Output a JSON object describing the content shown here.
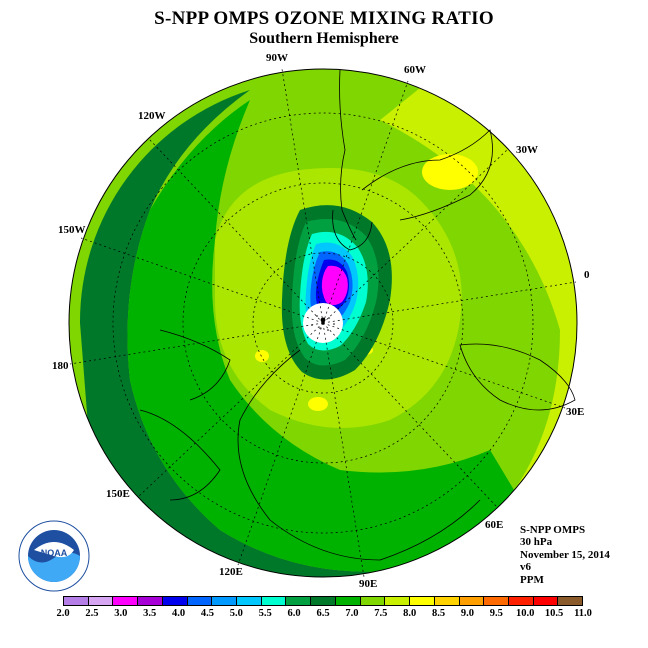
{
  "title": "S-NPP OMPS OZONE MIXING RATIO",
  "subtitle": "Southern Hemisphere",
  "longitude_labels": [
    {
      "text": "90W"
    },
    {
      "text": "60W"
    },
    {
      "text": "30W"
    },
    {
      "text": "0"
    },
    {
      "text": "30E"
    },
    {
      "text": "60E"
    },
    {
      "text": "90E"
    },
    {
      "text": "120E"
    },
    {
      "text": "150E"
    },
    {
      "text": "180"
    },
    {
      "text": "150W"
    },
    {
      "text": "120W"
    }
  ],
  "info": {
    "instrument": "S-NPP OMPS",
    "level": "30 hPa",
    "date": "November 15, 2014",
    "version": "v6",
    "units": "PPM"
  },
  "logo": {
    "text": "NOAA",
    "ring_text": "NATIONAL OCEANIC AND ATMOSPHERIC ADMINISTRATION · U.S. DEPARTMENT OF COMMERCE"
  },
  "colorbar": {
    "ticks": [
      "2.0",
      "2.5",
      "3.0",
      "3.5",
      "4.0",
      "4.5",
      "5.0",
      "5.5",
      "6.0",
      "6.5",
      "7.0",
      "7.5",
      "8.0",
      "8.5",
      "9.0",
      "9.5",
      "10.0",
      "10.5",
      "11.0"
    ],
    "colors": [
      "#b57ee6",
      "#d6a6f2",
      "#ff00ff",
      "#a600d6",
      "#0000ee",
      "#0066ff",
      "#0099ff",
      "#00c8ff",
      "#00ffd0",
      "#00a040",
      "#00782a",
      "#00b200",
      "#80d600",
      "#c8f000",
      "#ffff00",
      "#ffd200",
      "#ffa000",
      "#ff6a00",
      "#ff2000",
      "#ff0000",
      "#8b5a2b"
    ]
  }
}
